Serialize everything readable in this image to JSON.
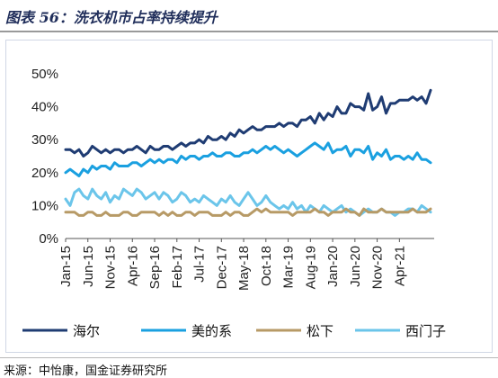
{
  "figure": {
    "title": "图表 56：洗衣机市占率持续提升",
    "source": "来源：中怡康，国金证券研究所"
  },
  "chart_data": {
    "type": "line",
    "ylim": [
      0,
      50
    ],
    "yticks": [
      "0%",
      "10%",
      "20%",
      "30%",
      "40%",
      "50%"
    ],
    "ytick_values": [
      0,
      10,
      20,
      30,
      40,
      50
    ],
    "xtick_labels": [
      "Jan-15",
      "Jun-15",
      "Nov-15",
      "Apr-16",
      "Sep-16",
      "Feb-17",
      "Jul-17",
      "Dec-17",
      "May-18",
      "Oct-18",
      "Mar-19",
      "Aug-19",
      "Jan-20",
      "Jun-20",
      "Nov-20",
      "Apr-21"
    ],
    "xtick_indices": [
      0,
      5,
      10,
      15,
      20,
      25,
      30,
      35,
      40,
      45,
      50,
      55,
      60,
      65,
      70,
      75
    ],
    "grid": false,
    "legend_position": "bottom",
    "series": [
      {
        "name": "海尔",
        "color": "#1f3c73",
        "values": [
          27,
          27,
          26,
          27,
          25,
          26,
          28,
          27,
          26,
          27,
          26,
          27,
          27,
          26,
          27,
          27,
          28,
          27,
          26,
          28,
          27,
          27,
          28,
          28,
          27,
          28,
          29,
          28,
          29,
          29,
          30,
          29,
          31,
          30,
          30,
          31,
          30,
          32,
          31,
          33,
          32,
          33,
          34,
          33,
          33,
          34,
          34,
          34,
          35,
          34,
          35,
          35,
          34,
          36,
          36,
          37,
          35,
          38,
          36,
          38,
          37,
          40,
          38,
          38,
          41,
          40,
          40,
          39,
          44,
          39,
          40,
          43,
          38,
          41,
          41,
          42,
          42,
          42,
          43,
          42,
          43,
          41,
          45
        ]
      },
      {
        "name": "美的系",
        "color": "#1aa0e0",
        "values": [
          20,
          21,
          20,
          19,
          21,
          20,
          22,
          21,
          22,
          22,
          21,
          23,
          22,
          22,
          22,
          23,
          23,
          22,
          23,
          24,
          23,
          24,
          23,
          24,
          24,
          23,
          25,
          24,
          25,
          25,
          24,
          25,
          25,
          26,
          25,
          25,
          26,
          26,
          25,
          25,
          26,
          26,
          27,
          26,
          27,
          28,
          27,
          28,
          27,
          26,
          27,
          26,
          25,
          26,
          27,
          28,
          29,
          28,
          27,
          29,
          26,
          27,
          27,
          28,
          25,
          27,
          27,
          26,
          28,
          24,
          26,
          25,
          27,
          24,
          25,
          25,
          24,
          25,
          24,
          26,
          24,
          24,
          23
        ]
      },
      {
        "name": "松下",
        "color": "#b79a66",
        "values": [
          8,
          8,
          8,
          7,
          7,
          8,
          8,
          7,
          7,
          8,
          7,
          7,
          7,
          8,
          8,
          7,
          7,
          8,
          8,
          8,
          8,
          7,
          8,
          7,
          8,
          7,
          7,
          8,
          8,
          7,
          8,
          8,
          8,
          7,
          7,
          7,
          8,
          7,
          8,
          8,
          7,
          7,
          8,
          9,
          8,
          9,
          8,
          8,
          8,
          8,
          8,
          7,
          8,
          8,
          8,
          8,
          9,
          8,
          8,
          7,
          8,
          8,
          8,
          9,
          8,
          8,
          7,
          9,
          8,
          8,
          8,
          9,
          8,
          8,
          8,
          8,
          8,
          8,
          9,
          8,
          8,
          8,
          9
        ]
      },
      {
        "name": "西门子",
        "color": "#6bc5ea",
        "values": [
          12,
          10,
          14,
          15,
          13,
          12,
          15,
          13,
          12,
          14,
          11,
          13,
          12,
          15,
          14,
          13,
          15,
          14,
          12,
          13,
          14,
          12,
          14,
          13,
          11,
          12,
          14,
          13,
          11,
          12,
          11,
          13,
          12,
          11,
          10,
          12,
          11,
          13,
          11,
          10,
          12,
          14,
          12,
          10,
          11,
          13,
          11,
          10,
          9,
          10,
          9,
          11,
          9,
          10,
          8,
          10,
          9,
          8,
          10,
          9,
          8,
          9,
          10,
          8,
          9,
          8,
          7,
          8,
          9,
          8,
          8,
          9,
          8,
          8,
          7,
          8,
          8,
          9,
          9,
          8,
          10,
          9,
          8
        ]
      }
    ]
  }
}
